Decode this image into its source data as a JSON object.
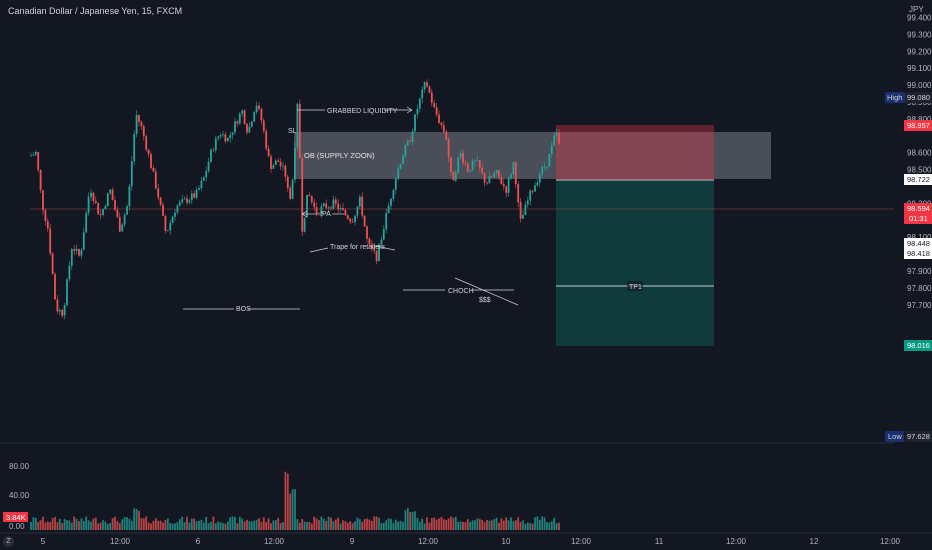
{
  "header": {
    "title": "Canadian Dollar / Japanese Yen, 15, FXCM",
    "currency": "JPY"
  },
  "colors": {
    "background": "#131722",
    "up": "#26a69a",
    "down": "#ef5350",
    "supply_zone": "#787b86",
    "stop_zone": "#f23645",
    "target_zone": "#089981",
    "text": "#d1d4dc",
    "high_label": "#2962ff"
  },
  "chart_data": {
    "type": "candlestick",
    "ylim": [
      97.6,
      99.48
    ],
    "y_ticks": [
      "99.400",
      "99.300",
      "99.200",
      "99.100",
      "99.000",
      "98.900",
      "98.800",
      "98.600",
      "98.500",
      "98.300",
      "98.200",
      "98.100",
      "97.900",
      "97.800",
      "97.700"
    ],
    "x_ticks": [
      "5",
      "12:00",
      "6",
      "12:00",
      "9",
      "12:00",
      "10",
      "12:00",
      "11",
      "12:00",
      "12",
      "12:00"
    ],
    "price_labels": {
      "high": {
        "tag": "High",
        "value": "99.080"
      },
      "stop": "98.957",
      "entry": "98.722",
      "current": "98.594",
      "countdown": "01:31",
      "level_a": "98.448",
      "level_b": "98.418",
      "target": "98.016",
      "low": {
        "tag": "Low",
        "value": "97.628"
      }
    },
    "annotations": {
      "grabbed": "GRABBED LIQUIDITY",
      "ob": "OB (SUPPLY ZOON)",
      "sl": "SL",
      "ipa": "IPA",
      "trape": "Trape for retailers",
      "bos": "BOS",
      "choch": "CHOCH",
      "sss": "$$$",
      "tp1": "TP1"
    },
    "volume": {
      "y_ticks": [
        "80.00",
        "40.00",
        "0.00"
      ],
      "current_label": "3.84K",
      "max": 100
    }
  }
}
